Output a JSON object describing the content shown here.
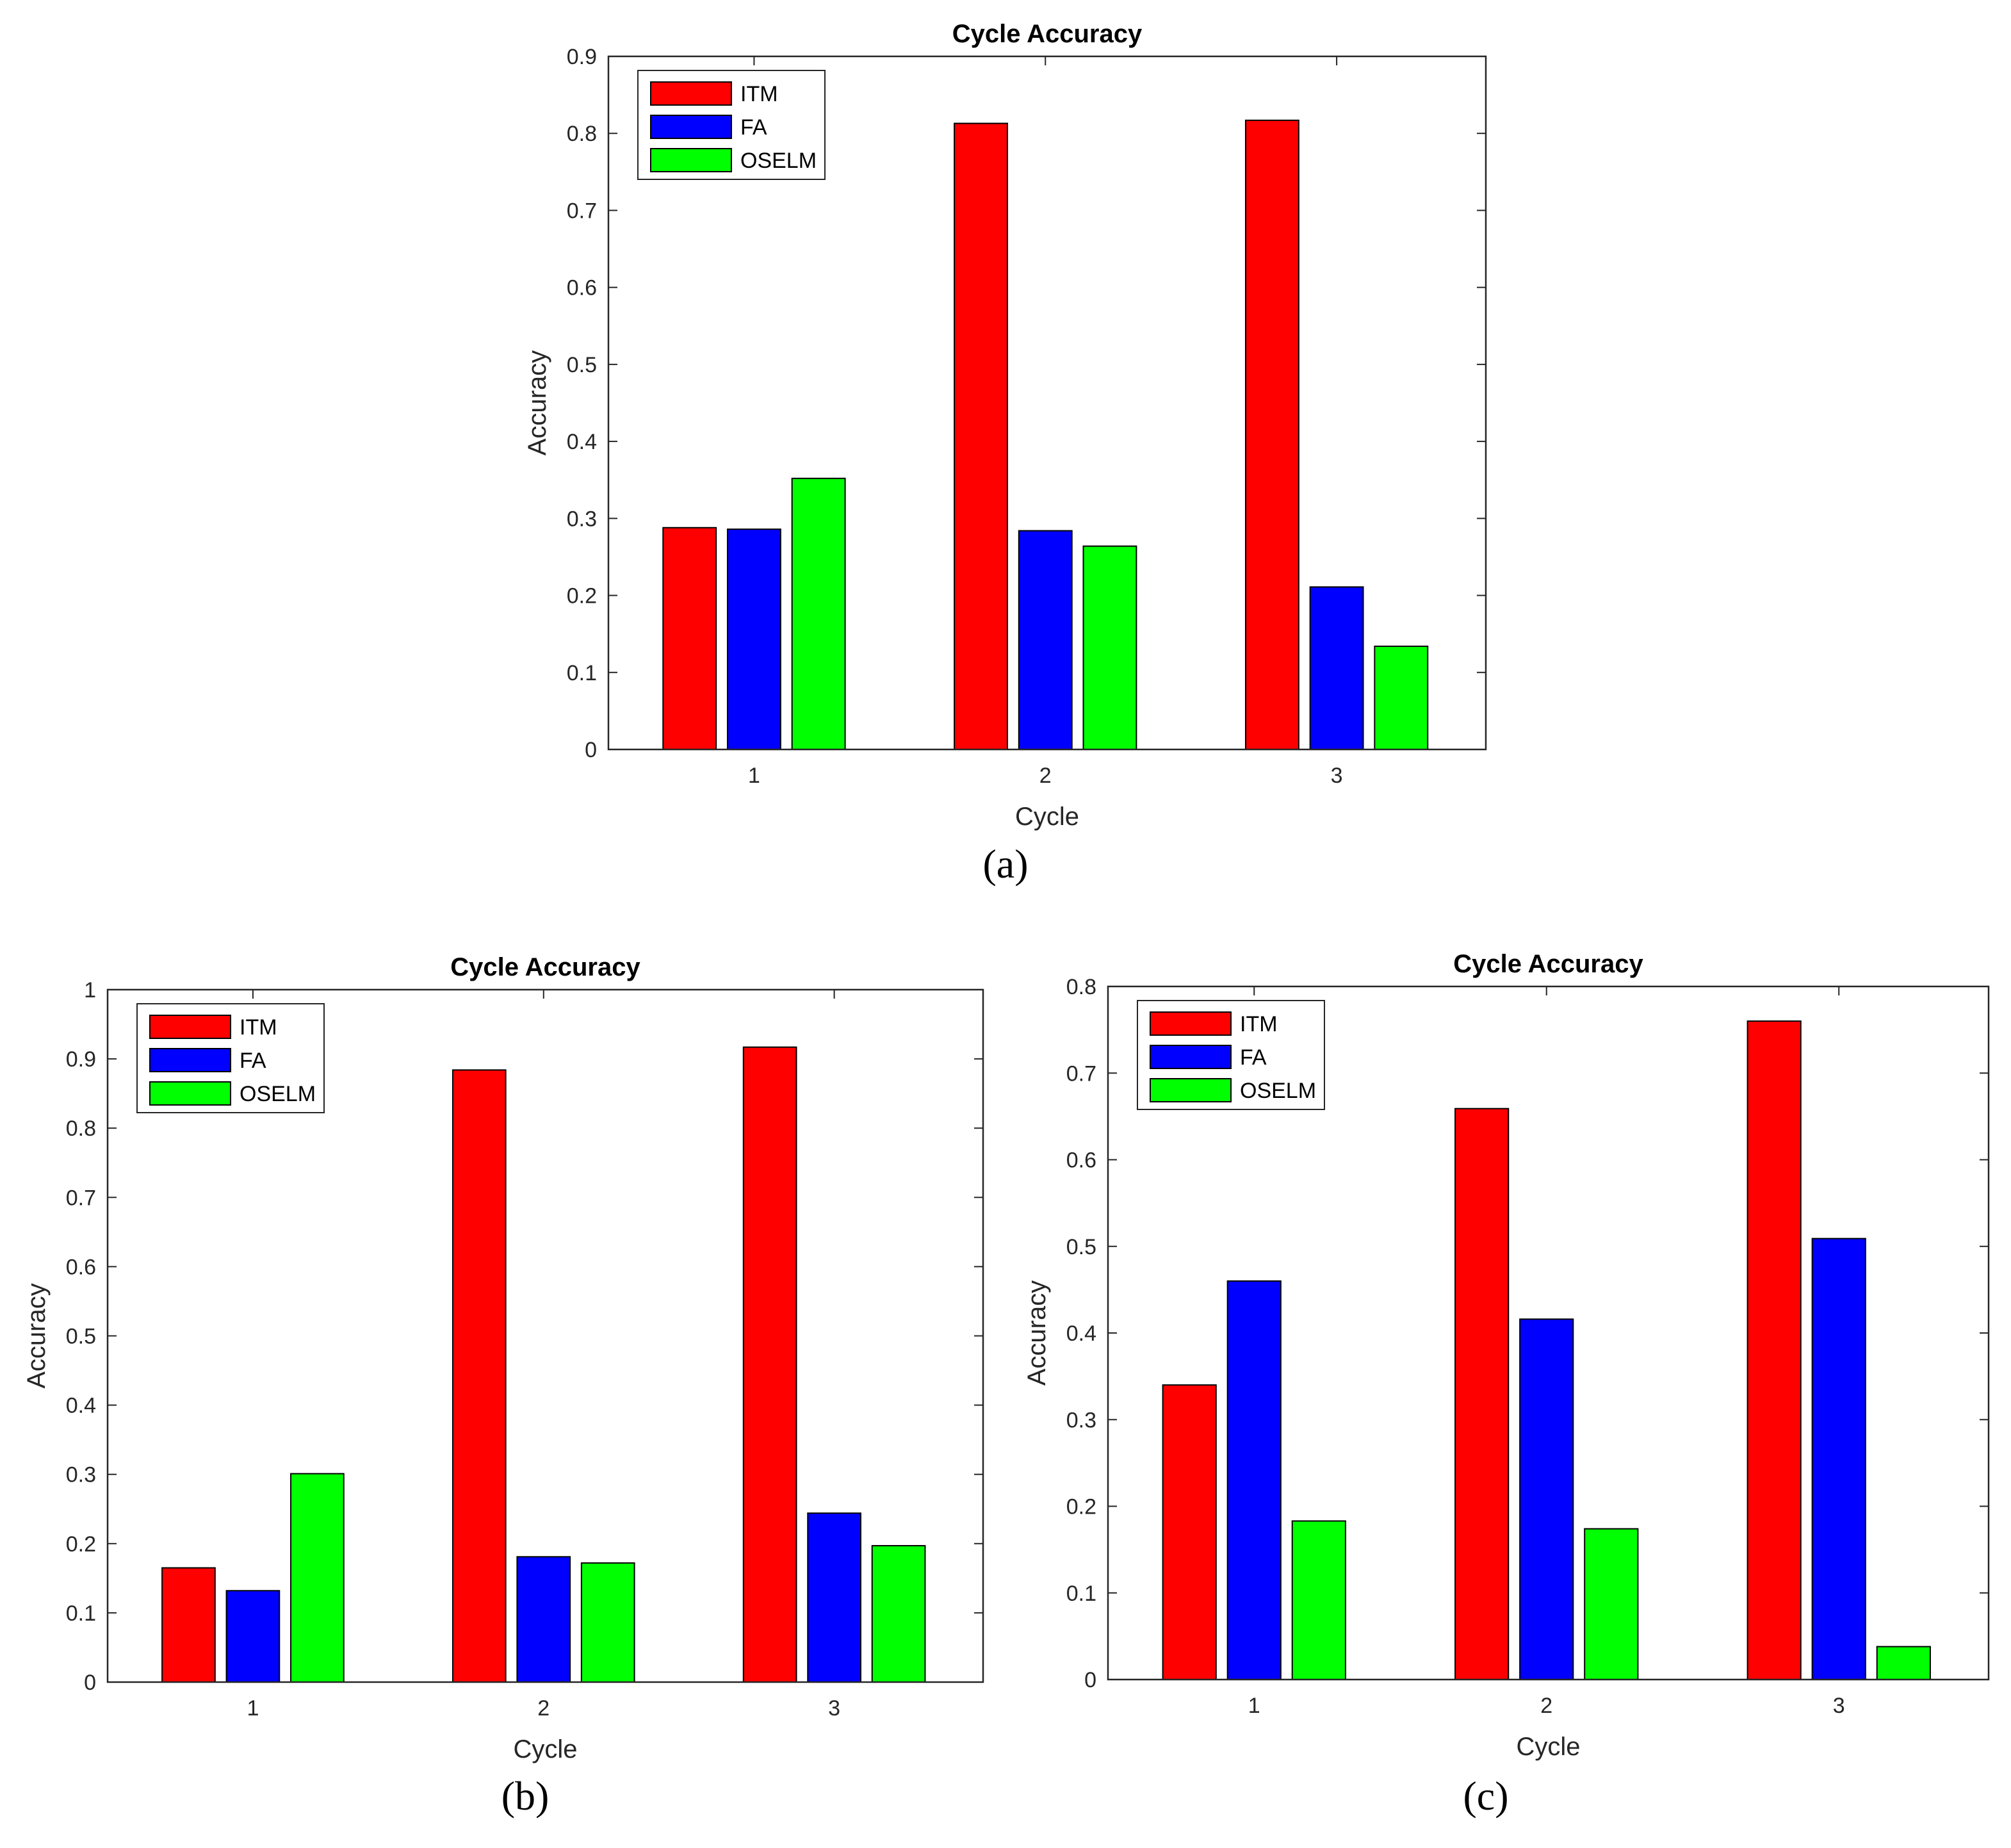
{
  "series_colors": [
    "#ff0000",
    "#0000ff",
    "#00ff00"
  ],
  "chart_data": [
    {
      "type": "bar",
      "title": "Cycle Accuracy",
      "xlabel": "Cycle",
      "ylabel": "Accuracy",
      "caption": "(a)",
      "categories": [
        "1",
        "2",
        "3"
      ],
      "ylim": [
        0,
        0.9
      ],
      "yticks": [
        "0",
        "0.1",
        "0.2",
        "0.3",
        "0.4",
        "0.5",
        "0.6",
        "0.7",
        "0.8",
        "0.9"
      ],
      "legend_position": "top-left",
      "series": [
        {
          "name": "ITM",
          "values": [
            0.288,
            0.813,
            0.817
          ]
        },
        {
          "name": "FA",
          "values": [
            0.286,
            0.284,
            0.211
          ]
        },
        {
          "name": "OSELM",
          "values": [
            0.352,
            0.264,
            0.134
          ]
        }
      ]
    },
    {
      "type": "bar",
      "title": "Cycle Accuracy",
      "xlabel": "Cycle",
      "ylabel": "Accuracy",
      "caption": "(b)",
      "categories": [
        "1",
        "2",
        "3"
      ],
      "ylim": [
        0,
        1
      ],
      "yticks": [
        "0",
        "0.1",
        "0.2",
        "0.3",
        "0.4",
        "0.5",
        "0.6",
        "0.7",
        "0.8",
        "0.9",
        "1"
      ],
      "legend_position": "top-left",
      "series": [
        {
          "name": "ITM",
          "values": [
            0.165,
            0.884,
            0.917
          ]
        },
        {
          "name": "FA",
          "values": [
            0.132,
            0.181,
            0.244
          ]
        },
        {
          "name": "OSELM",
          "values": [
            0.301,
            0.172,
            0.197
          ]
        }
      ]
    },
    {
      "type": "bar",
      "title": "Cycle Accuracy",
      "xlabel": "Cycle",
      "ylabel": "Accuracy",
      "caption": "(c)",
      "categories": [
        "1",
        "2",
        "3"
      ],
      "ylim": [
        0,
        0.8
      ],
      "yticks": [
        "0",
        "0.1",
        "0.2",
        "0.3",
        "0.4",
        "0.5",
        "0.6",
        "0.7",
        "0.8"
      ],
      "legend_position": "top-left",
      "series": [
        {
          "name": "ITM",
          "values": [
            0.34,
            0.659,
            0.76
          ]
        },
        {
          "name": "FA",
          "values": [
            0.46,
            0.416,
            0.509
          ]
        },
        {
          "name": "OSELM",
          "values": [
            0.183,
            0.174,
            0.038
          ]
        }
      ]
    }
  ]
}
